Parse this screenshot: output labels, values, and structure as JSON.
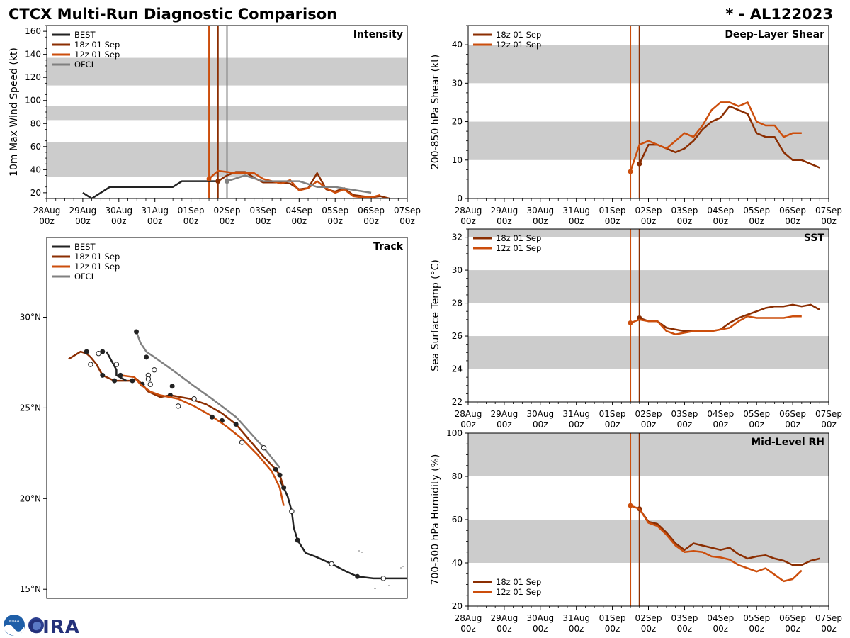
{
  "page": {
    "title": "CTCX Multi-Run Diagnostic Comparison",
    "storm_id": "* - AL122023",
    "logo_text": "CIRA",
    "logo_small_text": "NOAA"
  },
  "colors": {
    "best": "#222222",
    "run18": "#8b2e02",
    "run12": "#cc4e0c",
    "ofcl": "#808080",
    "band": "#cccccc"
  },
  "time_axis": {
    "tick_days": [
      0,
      1,
      2,
      3,
      4,
      5,
      6,
      7,
      8,
      9,
      10
    ],
    "tick_labels": [
      [
        "28Aug",
        "00z"
      ],
      [
        "29Aug",
        "00z"
      ],
      [
        "30Aug",
        "00z"
      ],
      [
        "31Aug",
        "00z"
      ],
      [
        "01Sep",
        "00z"
      ],
      [
        "02Sep",
        "00z"
      ],
      [
        "03Sep",
        "00z"
      ],
      [
        "04Sep",
        "00z"
      ],
      [
        "05Sep",
        "00z"
      ],
      [
        "06Sep",
        "00z"
      ],
      [
        "07Sep",
        "00z"
      ]
    ]
  },
  "chart_data": [
    {
      "id": "intensity",
      "type": "line",
      "title": "Intensity",
      "ylabel": "10m Max Wind Speed (kt)",
      "xlim": [
        0,
        10
      ],
      "ylim": [
        15,
        165
      ],
      "yticks": [
        20,
        40,
        60,
        80,
        100,
        120,
        140,
        160
      ],
      "bands": [
        [
          34,
          64
        ],
        [
          83,
          95
        ],
        [
          113,
          137
        ]
      ],
      "vlines": [
        {
          "x": 4.5,
          "series": "run12"
        },
        {
          "x": 4.75,
          "series": "run18"
        },
        {
          "x": 5.0,
          "series": "ofcl"
        }
      ],
      "legend": {
        "position": "top-left",
        "entries": [
          "BEST",
          "18z 01 Sep",
          "12z 01 Sep",
          "OFCL"
        ]
      },
      "series": [
        {
          "name": "BEST",
          "key": "best",
          "x": [
            1.0,
            1.25,
            1.75,
            2.0,
            3.0,
            3.5,
            3.75,
            4.0,
            4.5,
            4.75
          ],
          "y": [
            20,
            15,
            25,
            25,
            25,
            25,
            30,
            30,
            30,
            30
          ]
        },
        {
          "name": "18z 01 Sep",
          "key": "run18",
          "x": [
            4.75,
            5.0,
            5.25,
            5.5,
            5.75,
            6.0,
            6.25,
            6.5,
            6.75,
            7.0,
            7.25,
            7.5,
            7.75,
            8.0,
            8.25,
            8.5,
            8.75,
            9.0,
            9.25,
            9.5,
            9.75
          ],
          "y": [
            30,
            35,
            38,
            38,
            33,
            29,
            29,
            29,
            28,
            23,
            24,
            37,
            23,
            21,
            24,
            18,
            17,
            16,
            17,
            15,
            13
          ],
          "markers": [
            [
              4.75,
              30
            ]
          ]
        },
        {
          "name": "12z 01 Sep",
          "key": "run12",
          "x": [
            4.5,
            4.75,
            5.0,
            5.25,
            5.5,
            5.75,
            6.0,
            6.25,
            6.5,
            6.75,
            7.0,
            7.25,
            7.5,
            7.75,
            8.0,
            8.25,
            8.5,
            8.75,
            9.0,
            9.25
          ],
          "y": [
            32,
            39,
            38,
            37,
            37,
            37,
            32,
            30,
            28,
            31,
            22,
            24,
            30,
            24,
            20,
            23,
            17,
            16,
            16,
            18
          ],
          "markers": [
            [
              4.5,
              32
            ]
          ]
        },
        {
          "name": "OFCL",
          "key": "ofcl",
          "x": [
            5.0,
            5.5,
            6.0,
            6.5,
            7.0,
            7.5,
            8.0,
            9.0
          ],
          "y": [
            30,
            35,
            30,
            30,
            30,
            25,
            25,
            20
          ],
          "markers": [
            [
              5.0,
              30
            ]
          ]
        }
      ]
    },
    {
      "id": "shear",
      "type": "line",
      "title": "Deep-Layer Shear",
      "ylabel": "200-850 hPa Shear (kt)",
      "xlim": [
        0,
        10
      ],
      "ylim": [
        0,
        45
      ],
      "yticks": [
        0,
        10,
        20,
        30,
        40
      ],
      "bands": [
        [
          10,
          20
        ],
        [
          30,
          40
        ]
      ],
      "vlines": [
        {
          "x": 4.5,
          "series": "run12"
        },
        {
          "x": 4.75,
          "series": "run18"
        }
      ],
      "legend": {
        "position": "top-left",
        "entries": [
          "18z 01 Sep",
          "12z 01 Sep"
        ]
      },
      "series": [
        {
          "name": "18z 01 Sep",
          "key": "run18",
          "x": [
            4.75,
            5.0,
            5.25,
            5.5,
            5.75,
            6.0,
            6.25,
            6.5,
            6.75,
            7.0,
            7.25,
            7.5,
            7.75,
            8.0,
            8.25,
            8.5,
            8.75,
            9.0,
            9.25,
            9.5,
            9.75
          ],
          "y": [
            9,
            14,
            14,
            13,
            12,
            13,
            15,
            18,
            20,
            21,
            24,
            23,
            22,
            17,
            16,
            16,
            12,
            10,
            10,
            9,
            8
          ],
          "markers": [
            [
              4.75,
              9
            ]
          ]
        },
        {
          "name": "12z 01 Sep",
          "key": "run12",
          "x": [
            4.5,
            4.75,
            5.0,
            5.25,
            5.5,
            5.75,
            6.0,
            6.25,
            6.5,
            6.75,
            7.0,
            7.25,
            7.5,
            7.75,
            8.0,
            8.25,
            8.5,
            8.75,
            9.0,
            9.25
          ],
          "y": [
            7,
            14,
            15,
            14,
            13,
            15,
            17,
            16,
            19,
            23,
            25,
            25,
            24,
            25,
            20,
            19,
            19,
            16,
            17,
            17
          ],
          "markers": [
            [
              4.5,
              7
            ]
          ]
        }
      ]
    },
    {
      "id": "track",
      "type": "line",
      "title": "Track",
      "xlabel": "",
      "ylabel": "",
      "xlim": [
        -64.0,
        -45.9
      ],
      "ylim": [
        14.5,
        34.4
      ],
      "yticks": [
        15,
        20,
        25,
        30
      ],
      "ytick_labels": [
        "15°N",
        "20°N",
        "25°N",
        "30°N"
      ],
      "legend": {
        "position": "top-left",
        "entries": [
          "BEST",
          "18z 01 Sep",
          "12z 01 Sep",
          "OFCL"
        ]
      },
      "series": [
        {
          "name": "BEST",
          "key": "best",
          "x": [
            -45.9,
            -46.7,
            -47.1,
            -47.6,
            -48.4,
            -49.0,
            -49.7,
            -50.5,
            -51.0,
            -51.4,
            -51.6,
            -51.7,
            -51.9,
            -52.1,
            -52.3
          ],
          "y": [
            15.6,
            15.6,
            15.6,
            15.6,
            15.7,
            16.0,
            16.4,
            16.8,
            17.0,
            17.7,
            18.4,
            19.3,
            20.1,
            20.6,
            21.0
          ],
          "open": [
            [
              -47.1,
              15.6
            ],
            [
              -49.7,
              16.4
            ],
            [
              -51.7,
              19.3
            ]
          ],
          "filled": [
            [
              -48.4,
              15.7
            ],
            [
              -51.4,
              17.7
            ]
          ]
        },
        {
          "name": "18z 01 Sep",
          "key": "run18",
          "x": [
            -52.1,
            -52.3,
            -52.5,
            -53.1,
            -53.8,
            -54.5,
            -55.2,
            -56.0,
            -56.8,
            -57.8,
            -58.3,
            -58.9,
            -59.2,
            -59.5,
            -59.7,
            -60.2,
            -60.6,
            -61.2,
            -61.5,
            -61.8,
            -62.0,
            -62.3,
            -62.6,
            -62.9
          ],
          "y": [
            20.6,
            21.3,
            21.6,
            22.3,
            23.2,
            24.1,
            24.7,
            25.2,
            25.5,
            25.7,
            25.6,
            25.9,
            26.3,
            26.6,
            26.5,
            26.5,
            26.5,
            26.8,
            27.4,
            27.8,
            28.0,
            28.1,
            27.9,
            27.7
          ],
          "filled": [
            [
              -52.1,
              20.6
            ],
            [
              -52.5,
              21.6
            ],
            [
              -52.3,
              21.3
            ],
            [
              -54.5,
              24.1
            ],
            [
              -55.2,
              24.3
            ],
            [
              -57.8,
              25.7
            ],
            [
              -59.2,
              26.3
            ],
            [
              -59.7,
              26.5
            ],
            [
              -60.6,
              26.5
            ],
            [
              -61.2,
              26.8
            ],
            [
              -62.0,
              28.1
            ]
          ]
        },
        {
          "name": "12z 01 Sep",
          "key": "run12",
          "x": [
            -52.1,
            -52.3,
            -52.7,
            -53.4,
            -54.2,
            -55.0,
            -55.8,
            -56.6,
            -57.4,
            -58.3,
            -58.8,
            -59.3,
            -59.6,
            -60.3
          ],
          "y": [
            19.6,
            20.6,
            21.5,
            22.4,
            23.3,
            24.0,
            24.6,
            25.1,
            25.5,
            25.7,
            25.9,
            26.3,
            26.7,
            26.8
          ]
        },
        {
          "name": "OFCL",
          "key": "ofcl",
          "x": [
            -52.3,
            -53.1,
            -54.5,
            -55.7,
            -56.6,
            -57.7,
            -58.6,
            -59.0,
            -59.3,
            -59.5
          ],
          "y": [
            21.7,
            22.8,
            24.5,
            25.5,
            26.2,
            27.1,
            27.8,
            28.1,
            28.6,
            29.2
          ],
          "open": [
            [
              -53.1,
              22.8
            ],
            [
              -54.2,
              23.1
            ],
            [
              -56.6,
              25.5
            ],
            [
              -57.4,
              25.1
            ],
            [
              -58.6,
              27.1
            ],
            [
              -58.9,
              26.8
            ],
            [
              -58.9,
              26.6
            ],
            [
              -58.8,
              26.3
            ]
          ],
          "filled": [
            [
              -55.7,
              24.5
            ],
            [
              -57.7,
              26.2
            ],
            [
              -59.0,
              27.8
            ],
            [
              -59.5,
              29.2
            ]
          ]
        },
        {
          "name": "BEST-early",
          "key": "best",
          "x": [
            -60.0,
            -60.5,
            -60.5,
            -61.0
          ],
          "y": [
            26.5,
            26.8,
            27.1,
            28.1
          ],
          "open": [
            [
              -60.5,
              27.4
            ],
            [
              -61.4,
              28.0
            ],
            [
              -61.8,
              27.4
            ]
          ],
          "filled": [
            [
              -60.3,
              26.8
            ],
            [
              -61.2,
              28.1
            ]
          ]
        }
      ]
    },
    {
      "id": "sst",
      "type": "line",
      "title": "SST",
      "ylabel": "Sea Surface Temp (°C)",
      "xlim": [
        0,
        10
      ],
      "ylim": [
        22,
        32.5
      ],
      "yticks": [
        22,
        24,
        26,
        28,
        30,
        32
      ],
      "bands": [
        [
          24,
          26
        ],
        [
          28,
          30
        ],
        [
          32,
          34
        ]
      ],
      "vlines": [
        {
          "x": 4.5,
          "series": "run12"
        },
        {
          "x": 4.75,
          "series": "run18"
        }
      ],
      "legend": {
        "position": "top-left",
        "entries": [
          "18z 01 Sep",
          "12z 01 Sep"
        ]
      },
      "series": [
        {
          "name": "18z 01 Sep",
          "key": "run18",
          "x": [
            4.75,
            5.0,
            5.25,
            5.5,
            5.75,
            6.0,
            6.25,
            6.5,
            6.75,
            7.0,
            7.25,
            7.5,
            7.75,
            8.0,
            8.25,
            8.5,
            8.75,
            9.0,
            9.25,
            9.5,
            9.75
          ],
          "y": [
            27.1,
            26.9,
            26.9,
            26.5,
            26.4,
            26.3,
            26.3,
            26.3,
            26.3,
            26.4,
            26.8,
            27.1,
            27.3,
            27.5,
            27.7,
            27.8,
            27.8,
            27.9,
            27.8,
            27.9,
            27.6
          ],
          "markers": [
            [
              4.75,
              27.1
            ]
          ]
        },
        {
          "name": "12z 01 Sep",
          "key": "run12",
          "x": [
            4.5,
            4.75,
            5.0,
            5.25,
            5.5,
            5.75,
            6.0,
            6.25,
            6.5,
            6.75,
            7.0,
            7.25,
            7.5,
            7.75,
            8.0,
            8.25,
            8.5,
            8.75,
            9.0,
            9.25
          ],
          "y": [
            26.8,
            27.0,
            26.9,
            26.9,
            26.3,
            26.1,
            26.2,
            26.3,
            26.3,
            26.3,
            26.4,
            26.5,
            26.9,
            27.2,
            27.1,
            27.1,
            27.1,
            27.1,
            27.2,
            27.2
          ],
          "markers": [
            [
              4.5,
              26.8
            ]
          ]
        }
      ]
    },
    {
      "id": "rh",
      "type": "line",
      "title": "Mid-Level RH",
      "ylabel": "700-500 hPa Humidity (%)",
      "xlim": [
        0,
        10
      ],
      "ylim": [
        20,
        100
      ],
      "yticks": [
        20,
        40,
        60,
        80,
        100
      ],
      "bands": [
        [
          40,
          60
        ],
        [
          80,
          100
        ]
      ],
      "vlines": [
        {
          "x": 4.5,
          "series": "run12"
        },
        {
          "x": 4.75,
          "series": "run18"
        }
      ],
      "legend": {
        "position": "bottom-left",
        "entries": [
          "18z 01 Sep",
          "12z 01 Sep"
        ]
      },
      "series": [
        {
          "name": "18z 01 Sep",
          "key": "run18",
          "x": [
            4.75,
            5.0,
            5.25,
            5.5,
            5.75,
            6.0,
            6.25,
            6.5,
            6.75,
            7.0,
            7.25,
            7.5,
            7.75,
            8.0,
            8.25,
            8.5,
            8.75,
            9.0,
            9.25,
            9.5,
            9.75
          ],
          "y": [
            65,
            59,
            58,
            54,
            49,
            46,
            49,
            48,
            47,
            46,
            47,
            44,
            42,
            43,
            43.5,
            42,
            41,
            39,
            39,
            41,
            42
          ],
          "markers": [
            [
              4.75,
              65
            ]
          ]
        },
        {
          "name": "12z 01 Sep",
          "key": "run12",
          "x": [
            4.5,
            4.75,
            5.0,
            5.25,
            5.5,
            5.75,
            6.0,
            6.25,
            6.5,
            6.75,
            7.0,
            7.25,
            7.5,
            7.75,
            8.0,
            8.25,
            8.5,
            8.75,
            9.0,
            9.25
          ],
          "y": [
            66.5,
            65,
            58.5,
            57,
            53,
            48,
            45,
            45.5,
            45,
            43,
            42.5,
            41.5,
            39,
            37.5,
            36,
            37.5,
            34.5,
            31.5,
            32.5,
            36.5
          ],
          "markers": [
            [
              4.5,
              66.5
            ]
          ]
        }
      ]
    }
  ]
}
